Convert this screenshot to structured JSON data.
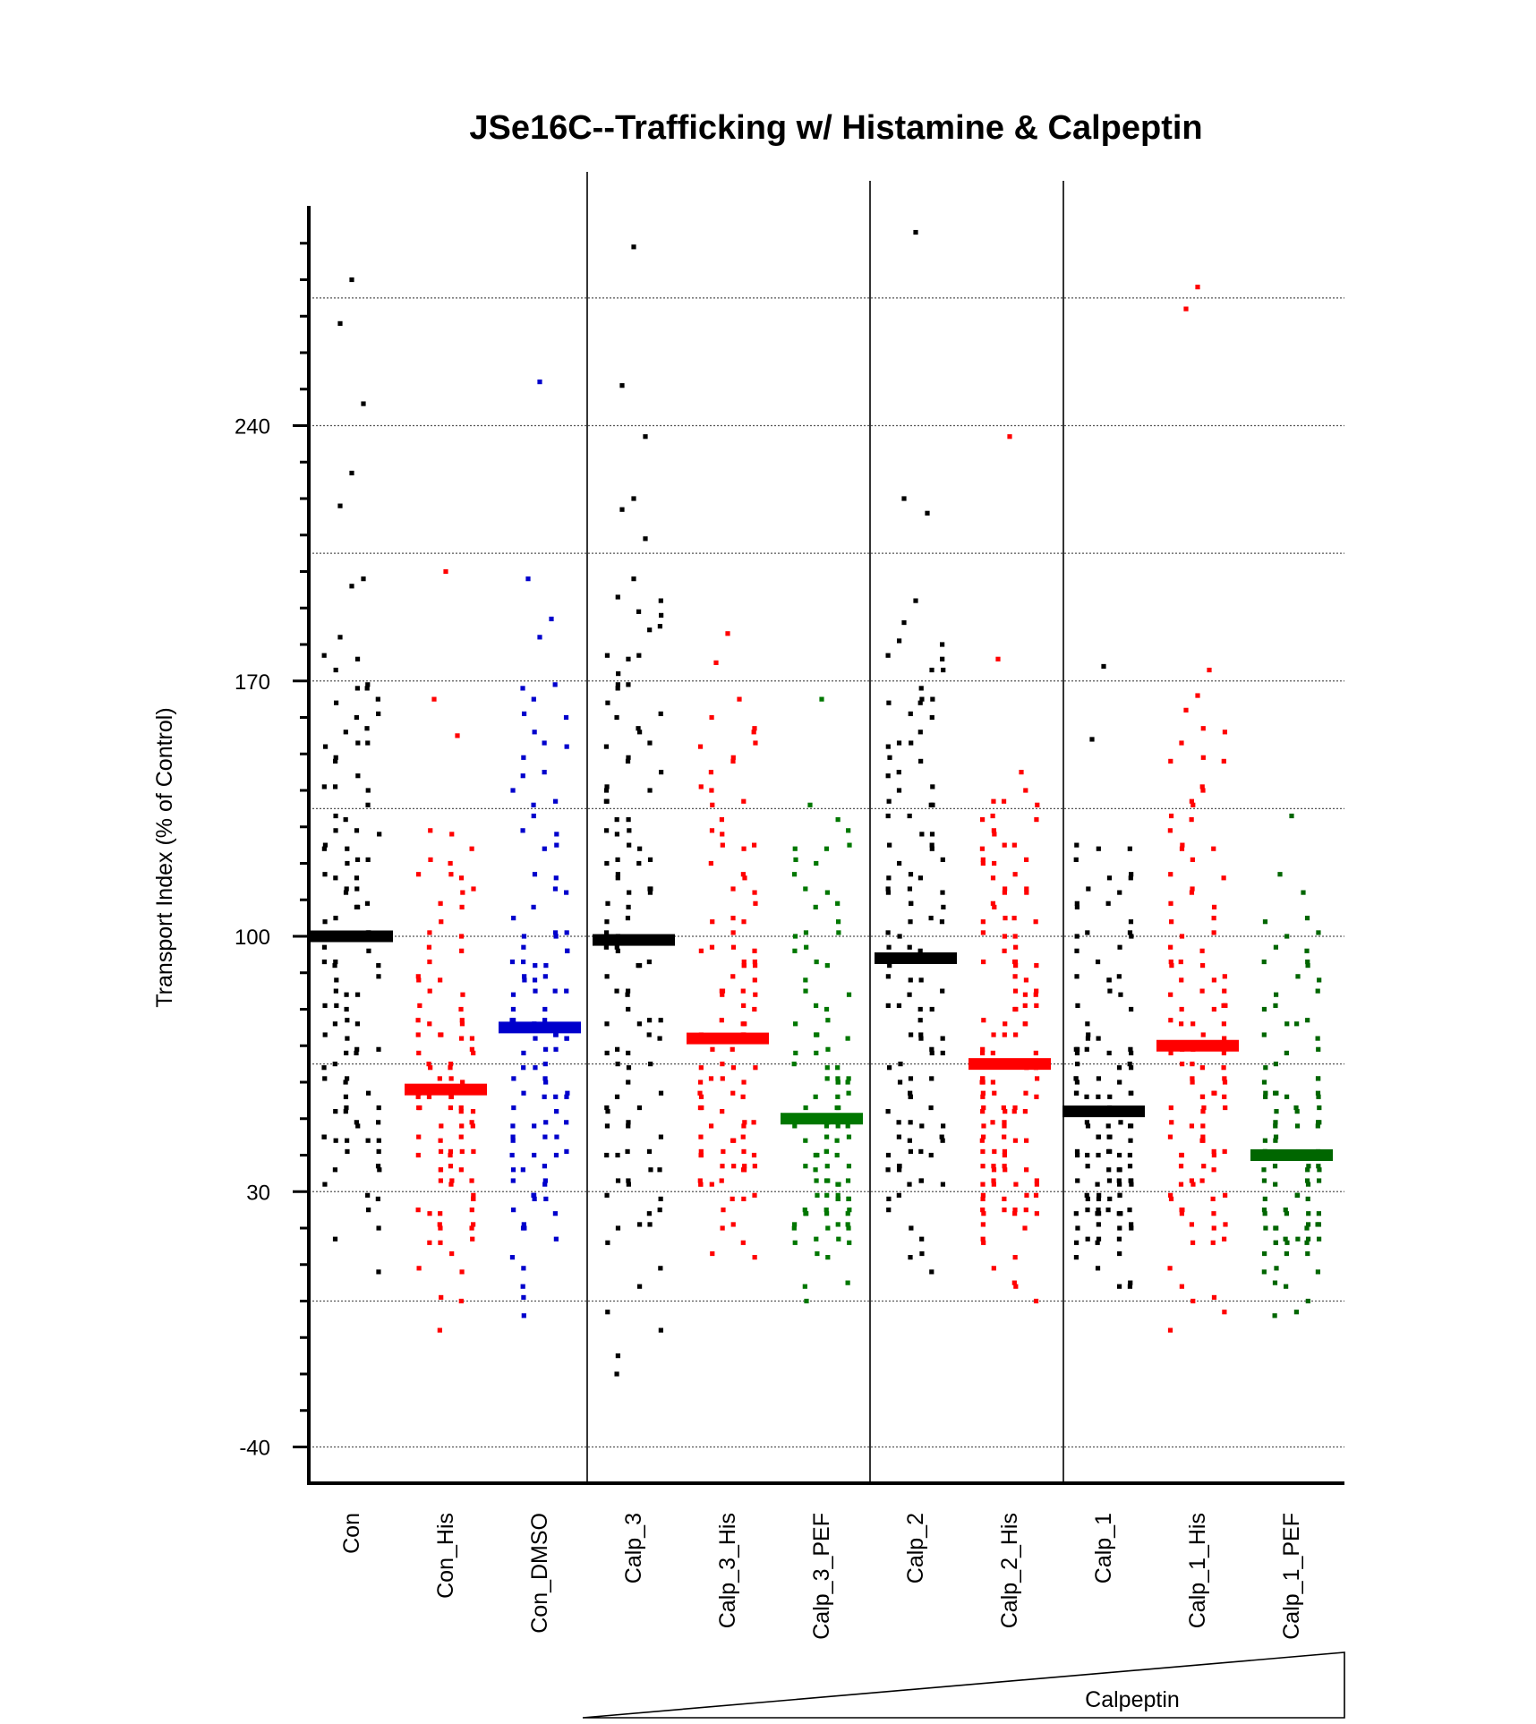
{
  "chart_data": {
    "type": "scatter",
    "subtype": "column-dot-plot",
    "title": "JSe16C--Trafficking w/ Histamine & Calpeptin",
    "xlabel": "",
    "ylabel": "Transport Index (% of Control)",
    "ylim": [
      -50,
      300
    ],
    "yticks_labeled": [
      -40,
      30,
      100,
      170,
      240
    ],
    "yticks_minor_step": 10,
    "grid": {
      "horizontal": true,
      "style": "dotted",
      "values": [
        -40,
        0,
        30,
        65,
        100,
        135,
        170,
        205,
        240,
        275
      ]
    },
    "legend": "none",
    "group_separators_after": [
      "Con_DMSO",
      "Calp_3_PEF",
      "Calp_2_His"
    ],
    "annotation": {
      "label": "Calpeptin",
      "shape": "increasing wedge",
      "from": "Calp_3",
      "to": "Calp_1_PEF"
    },
    "categories": [
      "Con",
      "Con_His",
      "Con_DMSO",
      "Calp_3",
      "Calp_3_His",
      "Calp_3_PEF",
      "Calp_2",
      "Calp_2_His",
      "Calp_1",
      "Calp_1_His",
      "Calp_1_PEF"
    ],
    "series": [
      {
        "category": "Con",
        "color": "#000000",
        "mean": 100,
        "n": 110,
        "min": 9,
        "q1": 55,
        "median": 93,
        "q3": 128,
        "max": 280,
        "outliers_high": [
          280,
          268,
          246,
          227,
          218,
          198,
          196,
          182
        ]
      },
      {
        "category": "Con_His",
        "color": "#ff0000",
        "mean": 58,
        "n": 100,
        "min": -6,
        "q1": 35,
        "median": 55,
        "q3": 78,
        "max": 200,
        "outliers_high": [
          200,
          165,
          155
        ]
      },
      {
        "category": "Con_DMSO",
        "color": "#0000cc",
        "mean": 75,
        "n": 110,
        "min": -4,
        "q1": 42,
        "median": 72,
        "q3": 100,
        "max": 252,
        "outliers_high": [
          252,
          198,
          187,
          182
        ]
      },
      {
        "category": "Calp_3",
        "color": "#000000",
        "mean": 99,
        "n": 115,
        "min": -21,
        "q1": 50,
        "median": 95,
        "q3": 135,
        "max": 289,
        "outliers_high": [
          289,
          251,
          237,
          220,
          217,
          209,
          198
        ]
      },
      {
        "category": "Calp_3_His",
        "color": "#ff0000",
        "mean": 72,
        "n": 110,
        "min": 12,
        "q1": 42,
        "median": 70,
        "q3": 100,
        "max": 183,
        "outliers_high": [
          183,
          175,
          165
        ]
      },
      {
        "category": "Calp_3_PEF",
        "color": "#007700",
        "mean": 50,
        "n": 105,
        "min": 3,
        "q1": 28,
        "median": 48,
        "q3": 75,
        "max": 165,
        "outliers_high": [
          165,
          136
        ]
      },
      {
        "category": "Calp_2",
        "color": "#000000",
        "mean": 94,
        "n": 115,
        "min": 6,
        "q1": 50,
        "median": 90,
        "q3": 130,
        "max": 293,
        "outliers_high": [
          293,
          220,
          216,
          192,
          186
        ]
      },
      {
        "category": "Calp_2_His",
        "color": "#ff0000",
        "mean": 65,
        "n": 130,
        "min": 0,
        "q1": 38,
        "median": 62,
        "q3": 95,
        "max": 237,
        "outliers_high": [
          237,
          176,
          145
        ]
      },
      {
        "category": "Calp_1",
        "color": "#000000",
        "mean": 52,
        "n": 125,
        "min": 3,
        "q1": 28,
        "median": 48,
        "q3": 72,
        "max": 174,
        "outliers_high": [
          174,
          154
        ]
      },
      {
        "category": "Calp_1_His",
        "color": "#ff0000",
        "mean": 70,
        "n": 115,
        "min": -10,
        "q1": 38,
        "median": 66,
        "q3": 95,
        "max": 278,
        "outliers_high": [
          278,
          272,
          173,
          166,
          162
        ]
      },
      {
        "category": "Calp_1_PEF",
        "color": "#006600",
        "mean": 40,
        "n": 105,
        "min": -4,
        "q1": 22,
        "median": 40,
        "q3": 60,
        "max": 133,
        "outliers_high": [
          133,
          117,
          112
        ]
      }
    ]
  }
}
